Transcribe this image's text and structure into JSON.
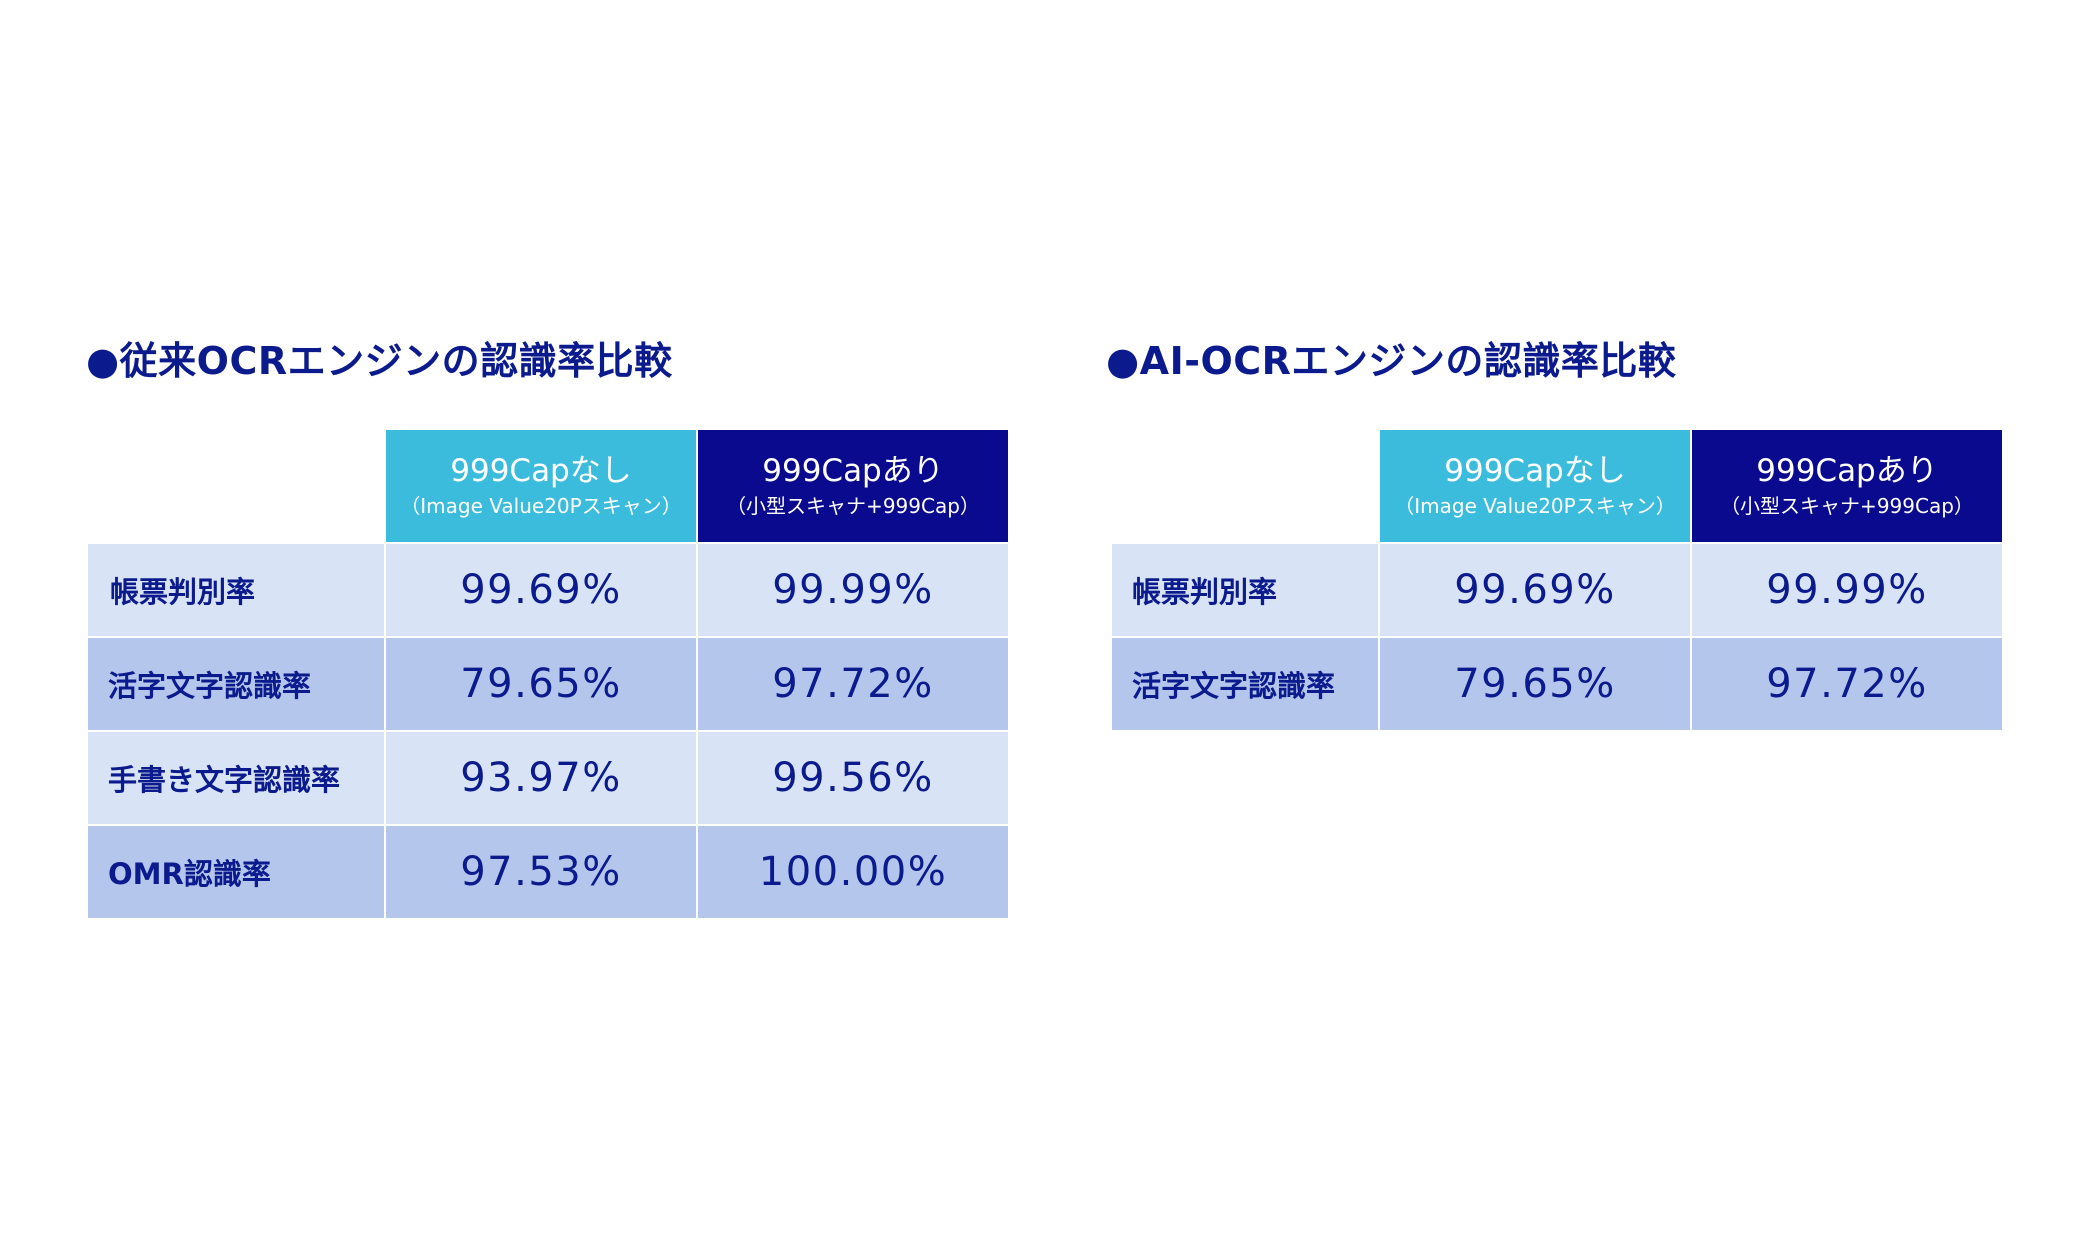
{
  "left": {
    "title": "●従来OCRエンジンの認識率比較",
    "columns": [
      {
        "main": "999Capなし",
        "sub": "（Image Value20Pスキャン）"
      },
      {
        "main": "999Capあり",
        "sub": "（小型スキャナ+999Cap）"
      }
    ],
    "rows": [
      {
        "label": "帳票判別率",
        "values": [
          "99.69%",
          "99.99%"
        ]
      },
      {
        "label": "活字文字認識率",
        "values": [
          "79.65%",
          "97.72%"
        ]
      },
      {
        "label": "手書き文字認識率",
        "values": [
          "93.97%",
          "99.56%"
        ]
      },
      {
        "label": "OMR認識率",
        "values": [
          "97.53%",
          "100.00%"
        ]
      }
    ]
  },
  "right": {
    "title": "●AI-OCRエンジンの認識率比較",
    "columns": [
      {
        "main": "999Capなし",
        "sub": "（Image Value20Pスキャン）"
      },
      {
        "main": "999Capあり",
        "sub": "（小型スキャナ+999Cap）"
      }
    ],
    "rows": [
      {
        "label": "帳票判別率",
        "values": [
          "99.69%",
          "99.99%"
        ]
      },
      {
        "label": "活字文字認識率",
        "values": [
          "79.65%",
          "97.72%"
        ]
      }
    ]
  },
  "colors": {
    "title_text": "#0b1a8c",
    "header_without": "#3bbcdc",
    "header_with": "#0a0a8e",
    "row_light": "#d8e3f5",
    "row_dark": "#b4c6ec"
  }
}
